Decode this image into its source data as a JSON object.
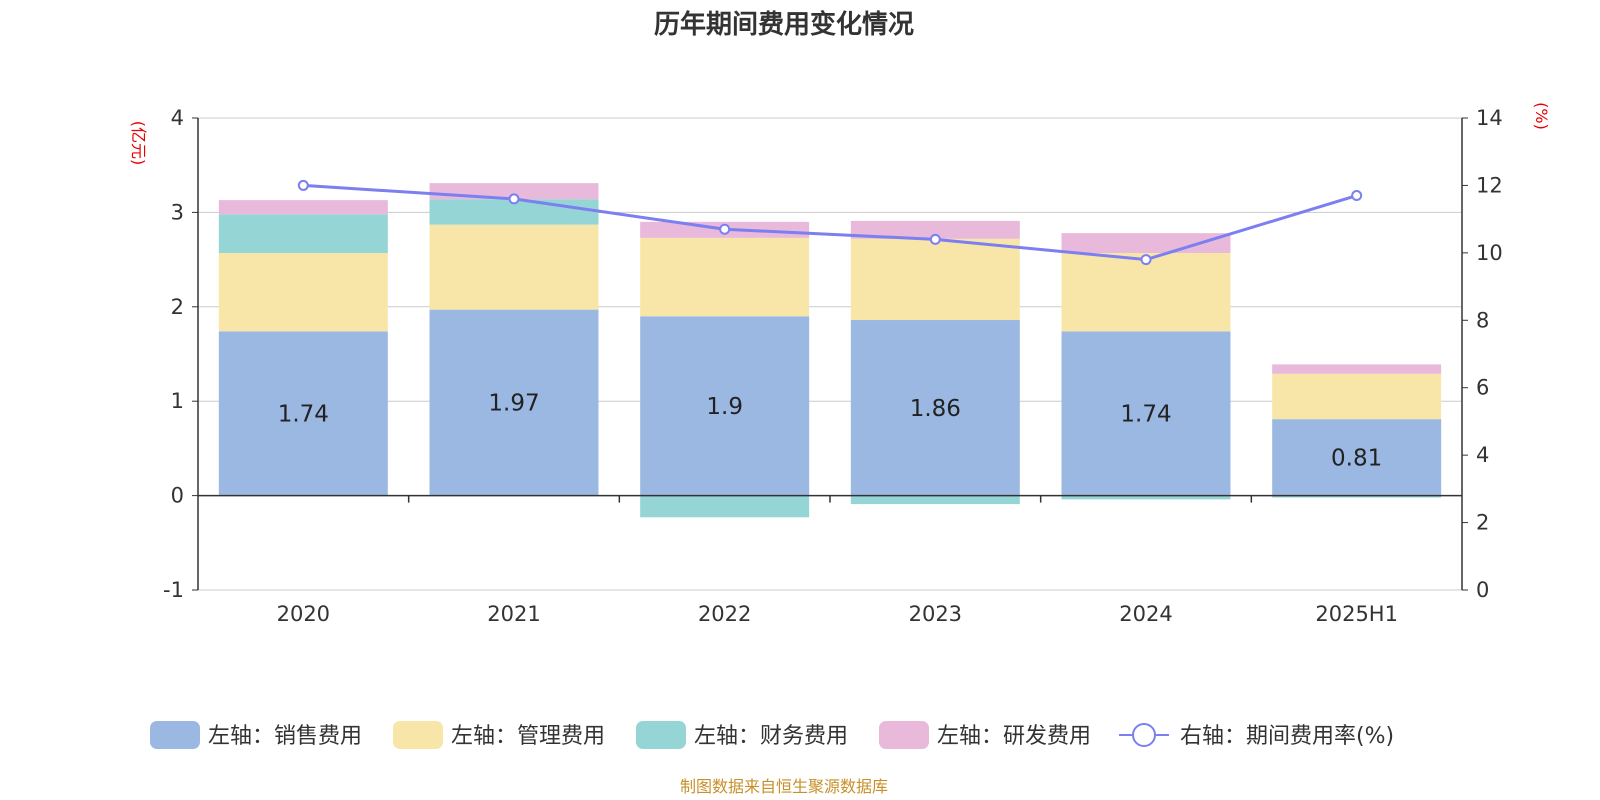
{
  "chart_data": {
    "type": "bar",
    "title": "历年期间费用变化情况",
    "categories": [
      "2020",
      "2021",
      "2022",
      "2023",
      "2024",
      "2025H1"
    ],
    "left_axis": {
      "unit": "(亿元)",
      "ylim": [
        -1,
        4
      ],
      "ticks": [
        "-1",
        "0",
        "1",
        "2",
        "3",
        "4"
      ]
    },
    "right_axis": {
      "unit": "(%)",
      "ylim": [
        0,
        14
      ],
      "ticks": [
        "0",
        "2",
        "4",
        "6",
        "8",
        "10",
        "12",
        "14"
      ]
    },
    "stacked": true,
    "series": [
      {
        "name": "左轴：销售费用",
        "type": "bar",
        "axis": "left",
        "color": "#9bb8e2",
        "values": [
          1.74,
          1.97,
          1.9,
          1.86,
          1.74,
          0.81
        ],
        "labels": [
          "1.74",
          "1.97",
          "1.9",
          "1.86",
          "1.74",
          "0.81"
        ]
      },
      {
        "name": "左轴：管理费用",
        "type": "bar",
        "axis": "left",
        "color": "#f8e6a8",
        "values": [
          0.83,
          0.9,
          0.83,
          0.86,
          0.83,
          0.48
        ]
      },
      {
        "name": "左轴：财务费用",
        "type": "bar",
        "axis": "left",
        "color": "#96d5d6",
        "values": [
          0.41,
          0.27,
          -0.23,
          -0.09,
          -0.04,
          -0.02
        ]
      },
      {
        "name": "左轴：研发费用",
        "type": "bar",
        "axis": "left",
        "color": "#e8b9da",
        "values": [
          0.15,
          0.17,
          0.17,
          0.19,
          0.21,
          0.1
        ]
      },
      {
        "name": "右轴：期间费用率(%)",
        "type": "line",
        "axis": "right",
        "color": "#7b7ff0",
        "values": [
          12.0,
          11.6,
          10.7,
          10.4,
          9.8,
          11.7
        ]
      }
    ],
    "grid": true,
    "legend": "bottom"
  },
  "source_note": "制图数据来自恒生聚源数据库"
}
